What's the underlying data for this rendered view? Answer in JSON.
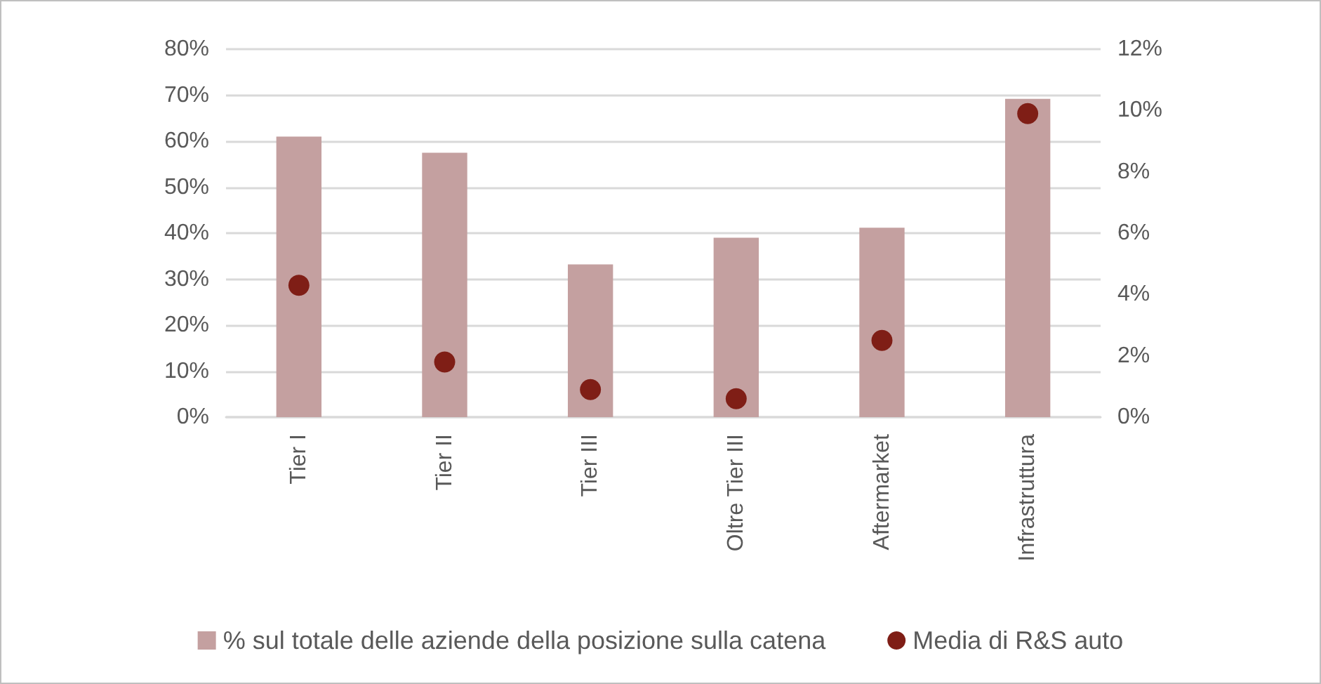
{
  "chart_data": {
    "type": "bar",
    "categories": [
      "Tier I",
      "Tier II",
      "Tier III",
      "Oltre Tier III",
      "Aftermarket",
      "Infrastruttura"
    ],
    "series": [
      {
        "name": "% sul totale delle aziende della posizione sulla catena",
        "color": "#c4a0a0",
        "values": [
          61,
          57.5,
          33.2,
          39,
          41.2,
          69.2
        ]
      },
      {
        "name": "Media di R&S auto",
        "type": "scatter",
        "axis": "y2",
        "marker": "circle",
        "color": "#7f1e16",
        "x": [
          "Tier I",
          "Tier II",
          "Tier III",
          "Oltre Tier III",
          "Aftermarket",
          "Infrastruttura"
        ],
        "values": [
          4.3,
          1.8,
          0.9,
          0.6,
          2.5,
          9.9
        ]
      }
    ],
    "ylim": [
      0,
      80
    ],
    "yticks": [
      {
        "value": 0,
        "label": "0%"
      },
      {
        "value": 10,
        "label": "10%"
      },
      {
        "value": 20,
        "label": "20%"
      },
      {
        "value": 30,
        "label": "30%"
      },
      {
        "value": 40,
        "label": "40%"
      },
      {
        "value": 50,
        "label": "50%"
      },
      {
        "value": 60,
        "label": "60%"
      },
      {
        "value": 70,
        "label": "70%"
      },
      {
        "value": 80,
        "label": "80%"
      }
    ],
    "y2lim": [
      0,
      12
    ],
    "y2ticks": [
      {
        "value": 0,
        "label": "0%"
      },
      {
        "value": 2,
        "label": "2%"
      },
      {
        "value": 4,
        "label": "4%"
      },
      {
        "value": 6,
        "label": "6%"
      },
      {
        "value": 8,
        "label": "8%"
      },
      {
        "value": 10,
        "label": "10%"
      },
      {
        "value": 12,
        "label": "12%"
      }
    ],
    "grid": "y",
    "legend": "bottom"
  }
}
